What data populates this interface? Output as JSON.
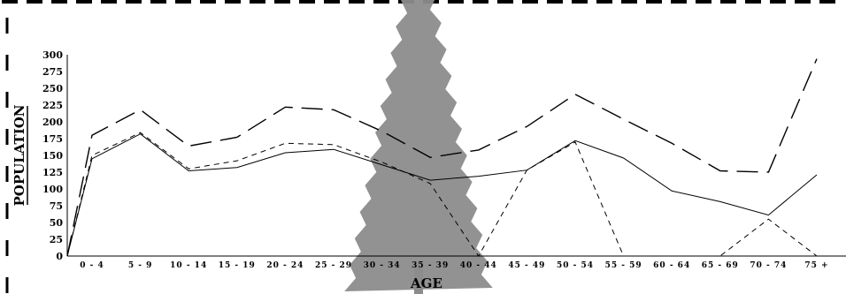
{
  "chart_data": {
    "type": "line",
    "xlabel": "AGE",
    "ylabel": "POPULATION",
    "ylim": [
      0,
      300
    ],
    "yticks": [
      "0",
      "25",
      "50",
      "75",
      "100",
      "125",
      "150",
      "175",
      "200",
      "225",
      "250",
      "275",
      "300"
    ],
    "categories": [
      "0 - 4",
      "5 - 9",
      "10 - 14",
      "15 - 19",
      "20 - 24",
      "25 - 29",
      "30 - 34",
      "35 - 39",
      "40 - 44",
      "45 - 49",
      "50 - 54",
      "55 - 59",
      "60 - 64",
      "65 - 69",
      "70 - 74",
      "75 +"
    ],
    "series": [
      {
        "style": "solid",
        "values": [
          145,
          182,
          127,
          132,
          154,
          159,
          136,
          113,
          119,
          128,
          172,
          146,
          97,
          81,
          61,
          121
        ]
      },
      {
        "style": "short-dash",
        "values": [
          150,
          184,
          130,
          142,
          168,
          166,
          140,
          108,
          0,
          128,
          170,
          0,
          0,
          0,
          55,
          0
        ]
      },
      {
        "style": "long-dash",
        "values": [
          180,
          218,
          164,
          177,
          222,
          218,
          186,
          147,
          158,
          193,
          241,
          204,
          168,
          127,
          125,
          294
        ]
      }
    ],
    "grid": false,
    "legend": "none"
  }
}
